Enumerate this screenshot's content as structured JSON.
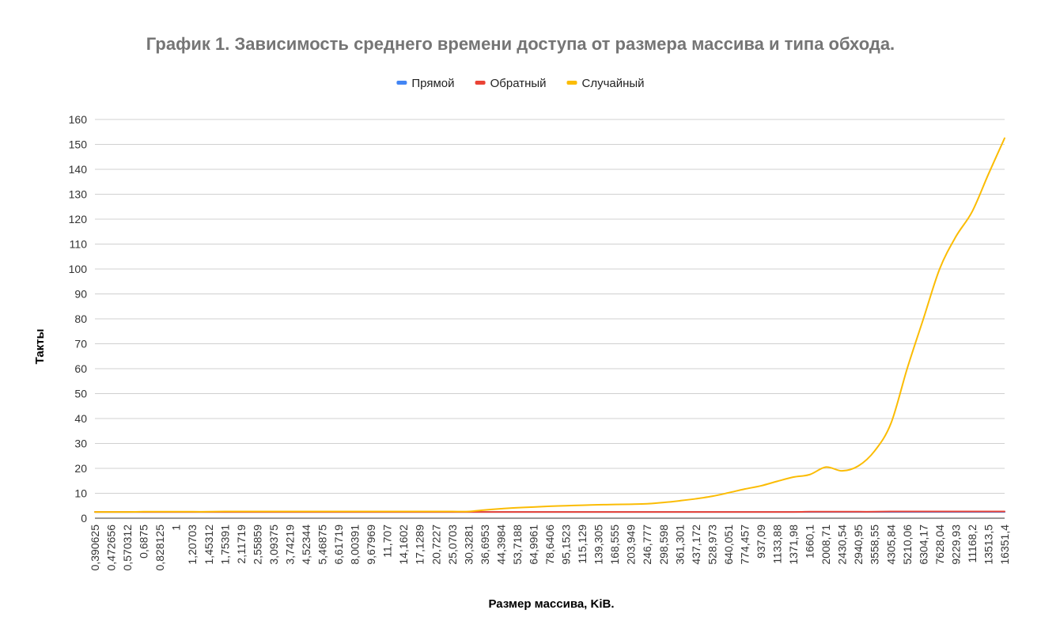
{
  "chart_data": {
    "type": "line",
    "title": "График 1. Зависимость среднего времени доступа от размера массива и типа обхода.",
    "xlabel": "Размер массива, KiB.",
    "ylabel": "Такты",
    "ylim": [
      0,
      160
    ],
    "yticks": [
      0,
      10,
      20,
      30,
      40,
      50,
      60,
      70,
      80,
      90,
      100,
      110,
      120,
      130,
      140,
      150,
      160
    ],
    "grid": true,
    "legend_position": "top-center",
    "categories": [
      "0,390625",
      "0,472656",
      "0,570312",
      "0,6875",
      "0,828125",
      "1",
      "1,20703",
      "1,45312",
      "1,75391",
      "2,11719",
      "2,55859",
      "3,09375",
      "3,74219",
      "4,52344",
      "5,46875",
      "6,61719",
      "8,00391",
      "9,67969",
      "11,707",
      "14,1602",
      "17,1289",
      "20,7227",
      "25,0703",
      "30,3281",
      "36,6953",
      "44,3984",
      "53,7188",
      "64,9961",
      "78,6406",
      "95,1523",
      "115,129",
      "139,305",
      "168,555",
      "203,949",
      "246,777",
      "298,598",
      "361,301",
      "437,172",
      "528,973",
      "640,051",
      "774,457",
      "937,09",
      "1133,88",
      "1371,98",
      "1660,1",
      "2008,71",
      "2430,54",
      "2940,95",
      "3558,55",
      "4305,84",
      "5210,06",
      "6304,17",
      "7628,04",
      "9229,93",
      "11168,2",
      "13513,5",
      "16351,4"
    ],
    "series": [
      {
        "name": "Прямой",
        "color": "#4285f4",
        "values": [
          2.5,
          2.5,
          2.5,
          2.5,
          2.5,
          2.5,
          2.5,
          2.5,
          2.5,
          2.5,
          2.5,
          2.5,
          2.5,
          2.5,
          2.5,
          2.5,
          2.5,
          2.5,
          2.5,
          2.5,
          2.5,
          2.5,
          2.5,
          2.5,
          2.5,
          2.5,
          2.5,
          2.5,
          2.5,
          2.5,
          2.5,
          2.5,
          2.5,
          2.5,
          2.5,
          2.5,
          2.5,
          2.5,
          2.5,
          2.5,
          2.5,
          2.5,
          2.5,
          2.5,
          2.5,
          2.5,
          2.5,
          2.5,
          2.5,
          2.5,
          2.5,
          2.5,
          2.5,
          2.5,
          2.5,
          2.5,
          2.5
        ]
      },
      {
        "name": "Обратный",
        "color": "#ea4335",
        "values": [
          2.5,
          2.5,
          2.5,
          2.5,
          2.5,
          2.5,
          2.5,
          2.5,
          2.5,
          2.5,
          2.5,
          2.5,
          2.5,
          2.5,
          2.5,
          2.5,
          2.5,
          2.5,
          2.5,
          2.5,
          2.5,
          2.5,
          2.5,
          2.5,
          2.5,
          2.5,
          2.5,
          2.5,
          2.5,
          2.5,
          2.5,
          2.5,
          2.5,
          2.5,
          2.5,
          2.5,
          2.5,
          2.5,
          2.5,
          2.5,
          2.5,
          2.5,
          2.5,
          2.5,
          2.6,
          2.6,
          2.6,
          2.6,
          2.6,
          2.7,
          2.7,
          2.7,
          2.7,
          2.7,
          2.7,
          2.7,
          2.7
        ]
      },
      {
        "name": "Случайный",
        "color": "#fbbc04",
        "values": [
          2.5,
          2.5,
          2.5,
          2.6,
          2.6,
          2.6,
          2.6,
          2.6,
          2.7,
          2.7,
          2.7,
          2.7,
          2.7,
          2.7,
          2.7,
          2.7,
          2.7,
          2.7,
          2.7,
          2.7,
          2.7,
          2.7,
          2.7,
          2.7,
          3.3,
          3.8,
          4.2,
          4.5,
          4.8,
          5.0,
          5.2,
          5.4,
          5.5,
          5.6,
          5.8,
          6.3,
          7.0,
          7.8,
          8.8,
          10.2,
          11.7,
          13.0,
          14.8,
          16.5,
          17.5,
          20.5,
          19.0,
          21.0,
          27.0,
          38.0,
          60.0,
          80.0,
          100.0,
          113.0,
          123.0,
          138.0,
          152.5
        ]
      }
    ]
  }
}
